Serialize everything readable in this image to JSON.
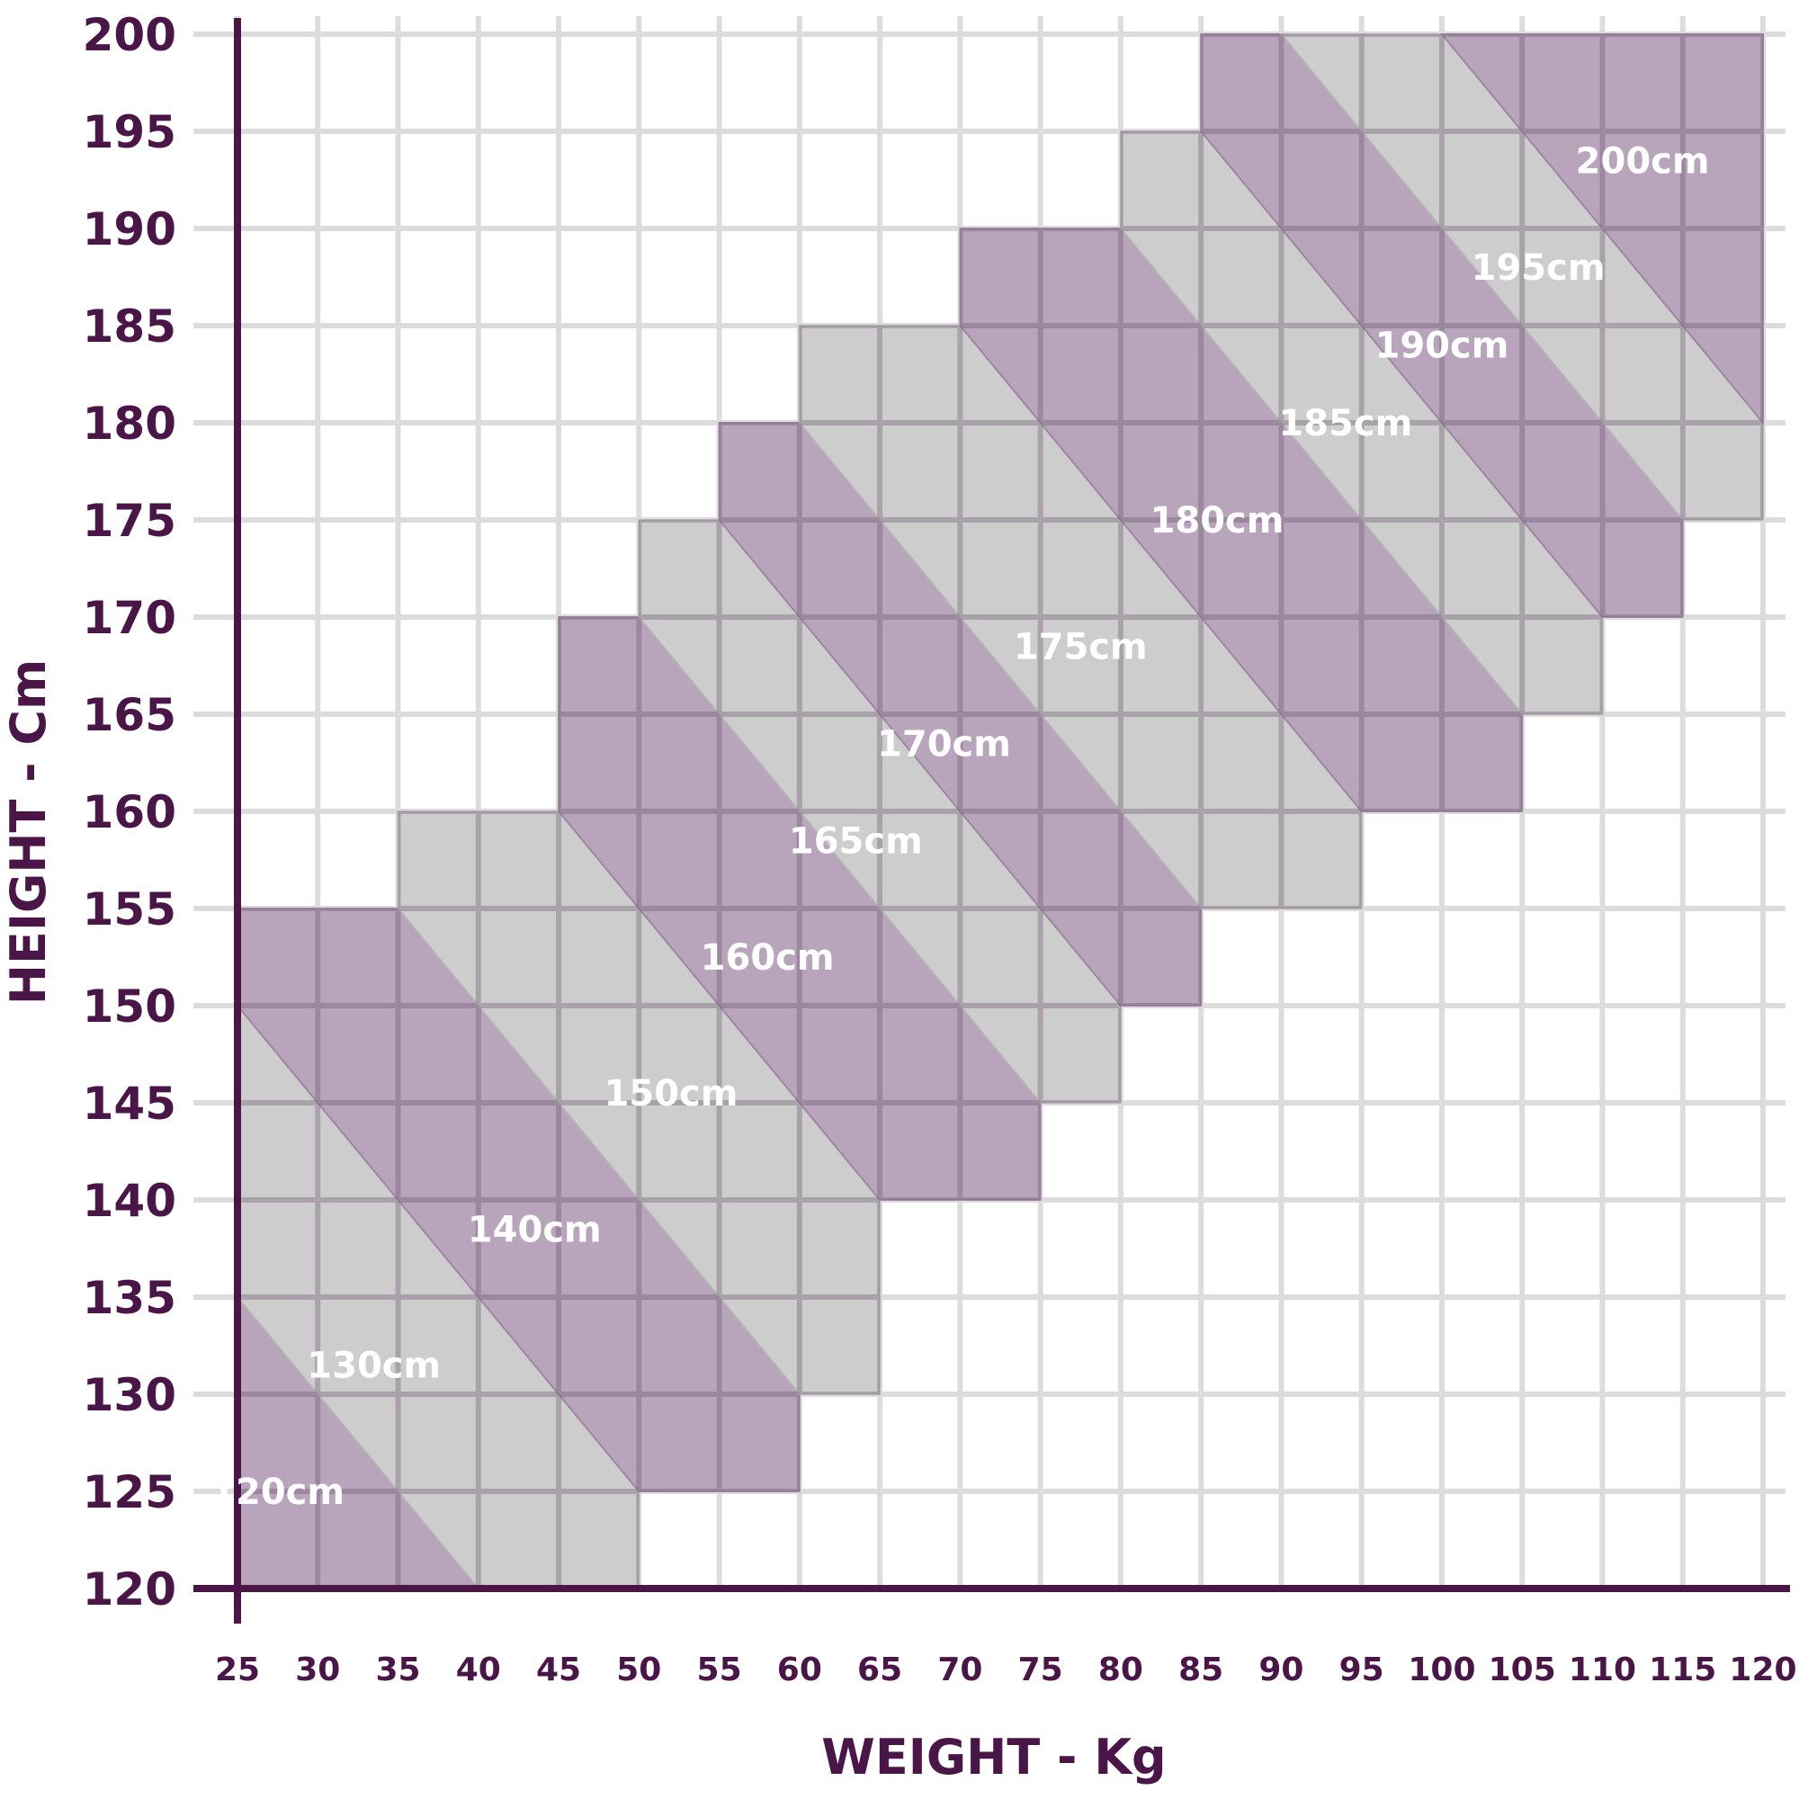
{
  "chart_data": {
    "type": "area",
    "title": "",
    "xlabel": "WEIGHT - Kg",
    "ylabel": "HEIGHT - Cm",
    "xlim": [
      25,
      120
    ],
    "ylim": [
      120,
      200
    ],
    "x_ticks": [
      25,
      30,
      35,
      40,
      45,
      50,
      55,
      60,
      65,
      70,
      75,
      80,
      85,
      90,
      95,
      100,
      105,
      110,
      115,
      120
    ],
    "y_ticks": [
      120,
      125,
      130,
      135,
      140,
      145,
      150,
      155,
      160,
      165,
      170,
      175,
      180,
      185,
      190,
      195,
      200
    ],
    "grid": true,
    "colors": {
      "purple_band": "#b09ab4",
      "gray_band": "#c8c8c8",
      "axis": "#4a1547",
      "grid": "#dcdcdc",
      "label": "#ffffff"
    },
    "bands": [
      {
        "label": "120cm",
        "color": "purple",
        "polygon": [
          [
            25,
            120
          ],
          [
            40,
            120
          ],
          [
            25,
            135
          ]
        ],
        "label_at": [
          27.5,
          125
        ]
      },
      {
        "label": "130cm",
        "color": "gray",
        "polygon": [
          [
            40,
            120
          ],
          [
            50,
            120
          ],
          [
            50,
            125
          ],
          [
            25,
            150
          ],
          [
            25,
            135
          ]
        ],
        "label_at": [
          33.5,
          131.5
        ]
      },
      {
        "label": "140cm",
        "color": "purple",
        "polygon": [
          [
            50,
            125
          ],
          [
            60,
            125
          ],
          [
            60,
            130
          ],
          [
            35,
            155
          ],
          [
            25,
            155
          ],
          [
            25,
            150
          ]
        ],
        "label_at": [
          43.5,
          138.5
        ]
      },
      {
        "label": "150cm",
        "color": "gray",
        "polygon": [
          [
            60,
            130
          ],
          [
            65,
            130
          ],
          [
            65,
            140
          ],
          [
            45,
            160
          ],
          [
            35,
            160
          ],
          [
            35,
            155
          ]
        ],
        "label_at": [
          52,
          145.5
        ]
      },
      {
        "label": "160cm",
        "color": "purple",
        "polygon": [
          [
            65,
            140
          ],
          [
            75,
            140
          ],
          [
            75,
            145
          ],
          [
            50,
            170
          ],
          [
            45,
            170
          ],
          [
            45,
            160
          ]
        ],
        "label_at": [
          58,
          152.5
        ]
      },
      {
        "label": "165cm",
        "color": "gray",
        "polygon": [
          [
            75,
            145
          ],
          [
            80,
            145
          ],
          [
            80,
            150
          ],
          [
            55,
            175
          ],
          [
            50,
            175
          ],
          [
            50,
            170
          ]
        ],
        "label_at": [
          63.5,
          158.5
        ]
      },
      {
        "label": "170cm",
        "color": "purple",
        "polygon": [
          [
            80,
            150
          ],
          [
            85,
            150
          ],
          [
            85,
            155
          ],
          [
            60,
            180
          ],
          [
            55,
            180
          ],
          [
            55,
            175
          ]
        ],
        "label_at": [
          69,
          163.5
        ]
      },
      {
        "label": "175cm",
        "color": "gray",
        "polygon": [
          [
            85,
            155
          ],
          [
            95,
            155
          ],
          [
            95,
            160
          ],
          [
            70,
            185
          ],
          [
            60,
            185
          ],
          [
            60,
            180
          ]
        ],
        "label_at": [
          77.5,
          168.5
        ]
      },
      {
        "label": "180cm",
        "color": "purple",
        "polygon": [
          [
            95,
            160
          ],
          [
            105,
            160
          ],
          [
            105,
            165
          ],
          [
            80,
            190
          ],
          [
            70,
            190
          ],
          [
            70,
            185
          ]
        ],
        "label_at": [
          86,
          175
        ]
      },
      {
        "label": "185cm",
        "color": "gray",
        "polygon": [
          [
            105,
            165
          ],
          [
            110,
            165
          ],
          [
            110,
            170
          ],
          [
            85,
            195
          ],
          [
            80,
            195
          ],
          [
            80,
            190
          ]
        ],
        "label_at": [
          94,
          180
        ]
      },
      {
        "label": "190cm",
        "color": "purple",
        "polygon": [
          [
            110,
            170
          ],
          [
            115,
            170
          ],
          [
            115,
            175
          ],
          [
            90,
            200
          ],
          [
            85,
            200
          ],
          [
            85,
            195
          ]
        ],
        "label_at": [
          100,
          184
        ]
      },
      {
        "label": "195cm",
        "color": "gray",
        "polygon": [
          [
            115,
            175
          ],
          [
            120,
            175
          ],
          [
            120,
            180
          ],
          [
            100,
            200
          ],
          [
            90,
            200
          ]
        ],
        "label_at": [
          106,
          188
        ]
      },
      {
        "label": "200cm",
        "color": "purple",
        "polygon": [
          [
            120,
            180
          ],
          [
            120,
            200
          ],
          [
            100,
            200
          ]
        ],
        "label_at": [
          112.5,
          193.5
        ]
      }
    ]
  }
}
